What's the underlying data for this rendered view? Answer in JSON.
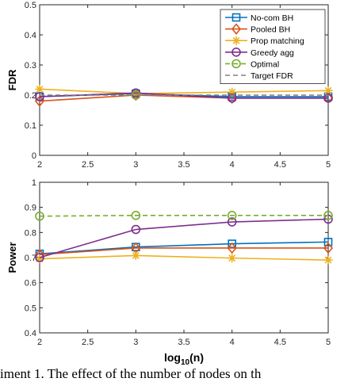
{
  "caption": "iment 1. The effect of the number of nodes on th",
  "chart_data": [
    {
      "type": "line",
      "ylabel": "FDR",
      "xlabel": "",
      "xlim": [
        2,
        5
      ],
      "ylim": [
        0,
        0.5
      ],
      "xticks": [
        "2",
        "2.5",
        "3",
        "3.5",
        "4",
        "4.5",
        "5"
      ],
      "yticks": [
        "0",
        "0.1",
        "0.2",
        "0.3",
        "0.4",
        "0.5"
      ],
      "x": [
        2,
        3,
        4,
        5
      ],
      "legend_position": "top-right",
      "series": [
        {
          "name": "No-com BH",
          "color": "#0072BD",
          "marker": "square",
          "dash": "solid",
          "values": [
            0.195,
            0.205,
            0.195,
            0.195
          ]
        },
        {
          "name": "Pooled BH",
          "color": "#D95319",
          "marker": "diamond",
          "dash": "solid",
          "values": [
            0.18,
            0.2,
            0.19,
            0.19
          ]
        },
        {
          "name": "Prop matching",
          "color": "#EDB120",
          "marker": "asterisk",
          "dash": "solid",
          "values": [
            0.22,
            0.205,
            0.21,
            0.215
          ]
        },
        {
          "name": "Greedy agg",
          "color": "#7E2F8E",
          "marker": "circle",
          "dash": "solid",
          "values": [
            0.195,
            0.207,
            0.19,
            0.19
          ]
        },
        {
          "name": "Optimal",
          "color": "#77AC30",
          "marker": "circle",
          "dash": "dashed",
          "values": [
            null,
            0.2,
            null,
            null
          ]
        },
        {
          "name": "Target FDR",
          "color": "#808080",
          "marker": "none",
          "dash": "dashed",
          "values": [
            0.2,
            0.2,
            0.2,
            0.2
          ]
        }
      ]
    },
    {
      "type": "line",
      "ylabel": "Power",
      "xlabel": "log10(n)",
      "xlim": [
        2,
        5
      ],
      "ylim": [
        0.4,
        1
      ],
      "xticks": [
        "2",
        "2.5",
        "3",
        "3.5",
        "4",
        "4.5",
        "5"
      ],
      "yticks": [
        "0.4",
        "0.5",
        "0.6",
        "0.7",
        "0.8",
        "0.9",
        "1"
      ],
      "x": [
        2,
        3,
        4,
        5
      ],
      "series": [
        {
          "color": "#0072BD",
          "marker": "square",
          "dash": "solid",
          "values": [
            0.715,
            0.742,
            0.755,
            0.762
          ]
        },
        {
          "color": "#D95319",
          "marker": "diamond",
          "dash": "solid",
          "values": [
            0.712,
            0.738,
            0.738,
            0.738
          ]
        },
        {
          "color": "#EDB120",
          "marker": "asterisk",
          "dash": "solid",
          "values": [
            0.695,
            0.708,
            0.698,
            0.69
          ]
        },
        {
          "color": "#7E2F8E",
          "marker": "circle",
          "dash": "solid",
          "values": [
            0.7,
            0.812,
            0.842,
            0.853
          ]
        },
        {
          "color": "#77AC30",
          "marker": "circle",
          "dash": "dashed",
          "values": [
            0.865,
            0.868,
            0.868,
            0.868
          ]
        }
      ]
    }
  ]
}
